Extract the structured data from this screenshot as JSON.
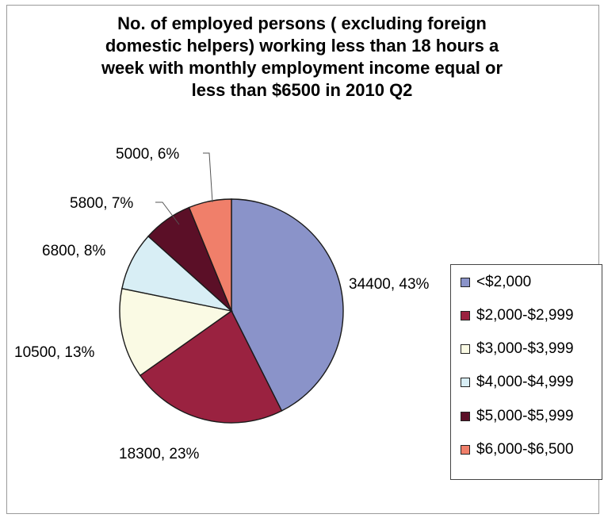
{
  "chart_data": {
    "type": "pie",
    "title_lines": [
      "No. of employed persons ( excluding foreign",
      "domestic helpers) working less than 18 hours a",
      "week with monthly employment income equal or",
      "less than $6500 in 2010 Q2"
    ],
    "categories": [
      "<$2,000",
      "$2,000-$2,999",
      "$3,000-$3,999",
      "$4,000-$4,999",
      "$5,000-$5,999",
      "$6,000-$6,500"
    ],
    "values": [
      34400,
      18300,
      10500,
      6800,
      5800,
      5000
    ],
    "data_labels": [
      "34400, 43%",
      "18300, 23%",
      "10500, 13%",
      "6800, 8%",
      "5800, 7%",
      "5000, 6%"
    ],
    "colors": [
      "#8a93c9",
      "#9a2240",
      "#fafae4",
      "#d8eef5",
      "#5b0f27",
      "#f07f6a"
    ],
    "legend_position": "right"
  }
}
